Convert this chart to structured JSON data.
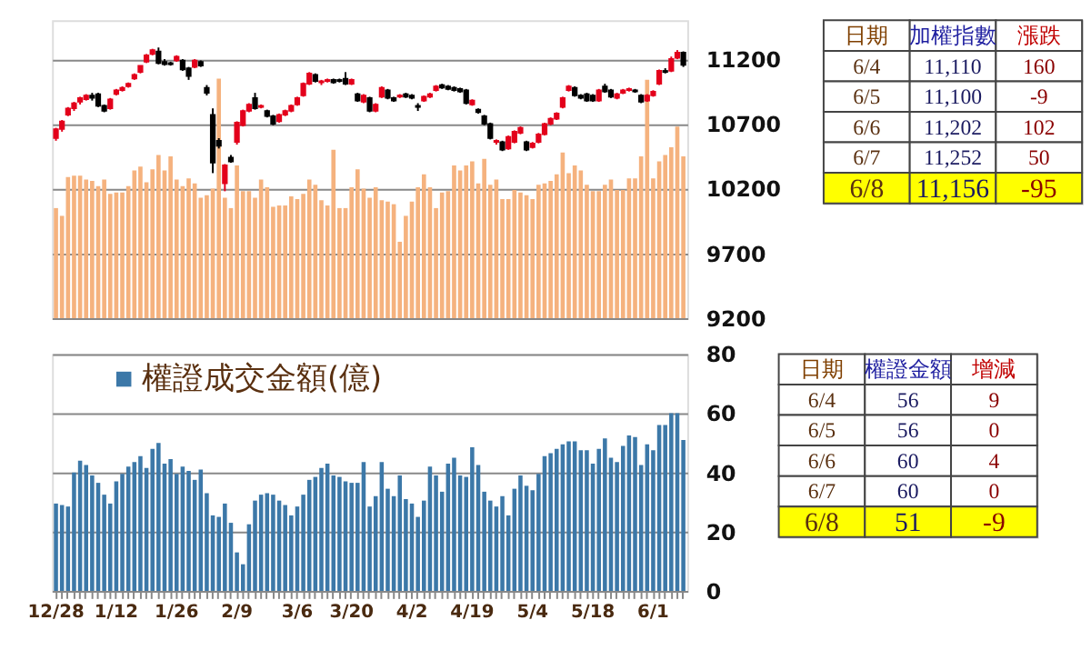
{
  "chart_data": [
    {
      "type": "candlestick",
      "categories": [
        null,
        null,
        null,
        null,
        null,
        null,
        null,
        null,
        null,
        null,
        null,
        null,
        null,
        null,
        null,
        null,
        null,
        null,
        null,
        null,
        null,
        null,
        null,
        null,
        null,
        null,
        null,
        null,
        null,
        null,
        null,
        null,
        null,
        null,
        null,
        null,
        null,
        null,
        null,
        null,
        null,
        null,
        null,
        null,
        null,
        null,
        null,
        null,
        null,
        null,
        null,
        null,
        null,
        null,
        null,
        null,
        null,
        null,
        null,
        null,
        null,
        null,
        null,
        null,
        null,
        null,
        null,
        null,
        null,
        null,
        null,
        null,
        null,
        null,
        null,
        null,
        null,
        null,
        null,
        null,
        null,
        null,
        null,
        null,
        null,
        null,
        null,
        null,
        null,
        null,
        null,
        null,
        null,
        null,
        null,
        null,
        null,
        null,
        null,
        null,
        null,
        null,
        null,
        null,
        null
      ],
      "ohlc": [
        [
          10590,
          10670,
          10570,
          10660
        ],
        [
          10660,
          10730,
          10640,
          10720
        ],
        [
          10770,
          10830,
          10760,
          10820
        ],
        [
          10820,
          10870,
          10800,
          10860
        ],
        [
          10870,
          10910,
          10850,
          10900
        ],
        [
          10890,
          10930,
          10880,
          10920
        ],
        [
          10920,
          10940,
          10880,
          10900
        ],
        [
          10930,
          10940,
          10830,
          10840
        ],
        [
          10840,
          10850,
          10790,
          10800
        ],
        [
          10820,
          10900,
          10810,
          10890
        ],
        [
          10930,
          10970,
          10920,
          10960
        ],
        [
          10960,
          10990,
          10950,
          10980
        ],
        [
          10990,
          11020,
          10980,
          11010
        ],
        [
          11050,
          11090,
          11040,
          11080
        ],
        [
          11100,
          11150,
          11090,
          11150
        ],
        [
          11180,
          11240,
          11170,
          11230
        ],
        [
          11240,
          11280,
          11230,
          11270
        ],
        [
          11260,
          11290,
          11160,
          11170
        ],
        [
          11180,
          11200,
          11150,
          11160
        ],
        [
          11170,
          11180,
          11150,
          11160
        ],
        [
          11190,
          11230,
          11180,
          11220
        ],
        [
          11190,
          11200,
          11110,
          11120
        ],
        [
          11130,
          11140,
          11040,
          11070
        ],
        [
          11140,
          11200,
          11130,
          11190
        ],
        [
          11180,
          11190,
          11140,
          11150
        ],
        [
          10980,
          11000,
          10920,
          10940
        ],
        [
          10770,
          10820,
          10320,
          10400
        ],
        [
          10570,
          10590,
          10510,
          10530
        ],
        [
          10240,
          10390,
          10180,
          10380
        ],
        [
          10440,
          10460,
          10400,
          10410
        ],
        [
          10560,
          10720,
          10540,
          10710
        ],
        [
          10690,
          10810,
          10680,
          10800
        ],
        [
          10800,
          10860,
          10790,
          10850
        ],
        [
          10900,
          10940,
          10810,
          10820
        ],
        [
          10830,
          10850,
          10820,
          10840
        ],
        [
          10800,
          10810,
          10750,
          10760
        ],
        [
          10760,
          10770,
          10690,
          10700
        ],
        [
          10720,
          10780,
          10710,
          10770
        ],
        [
          10770,
          10810,
          10760,
          10800
        ],
        [
          10800,
          10850,
          10790,
          10840
        ],
        [
          10850,
          10910,
          10840,
          10900
        ],
        [
          10920,
          11020,
          10910,
          11010
        ],
        [
          11010,
          11100,
          11000,
          11090
        ],
        [
          11080,
          11090,
          11020,
          11030
        ],
        [
          11020,
          11040,
          11000,
          11030
        ],
        [
          11030,
          11050,
          11020,
          11040
        ],
        [
          11040,
          11050,
          11010,
          11020
        ],
        [
          11040,
          11050,
          11020,
          11030
        ],
        [
          11050,
          11100,
          11000,
          11010
        ],
        [
          11010,
          11050,
          11000,
          11040
        ],
        [
          10930,
          10940,
          10870,
          10880
        ],
        [
          10870,
          10930,
          10860,
          10920
        ],
        [
          10900,
          10910,
          10790,
          10800
        ],
        [
          10800,
          10860,
          10790,
          10850
        ],
        [
          10910,
          10990,
          10900,
          10980
        ],
        [
          10960,
          10970,
          10890,
          10900
        ],
        [
          10900,
          10910,
          10870,
          10880
        ],
        [
          10910,
          10930,
          10900,
          10920
        ],
        [
          10930,
          10940,
          10900,
          10910
        ],
        [
          10920,
          10930,
          10890,
          10900
        ],
        [
          10840,
          10860,
          10800,
          10830
        ],
        [
          10880,
          10920,
          10870,
          10910
        ],
        [
          10910,
          10940,
          10900,
          10930
        ],
        [
          10960,
          11000,
          10950,
          10990
        ],
        [
          11000,
          11010,
          10970,
          10980
        ],
        [
          10990,
          11000,
          10960,
          10970
        ],
        [
          10980,
          10990,
          10950,
          10960
        ],
        [
          10970,
          10980,
          10940,
          10950
        ],
        [
          10960,
          10970,
          10850,
          10860
        ],
        [
          10850,
          10890,
          10840,
          10880
        ],
        [
          10810,
          10820,
          10780,
          10790
        ],
        [
          10760,
          10770,
          10690,
          10700
        ],
        [
          10700,
          10710,
          10580,
          10590
        ],
        [
          10560,
          10580,
          10540,
          10570
        ],
        [
          10560,
          10570,
          10490,
          10500
        ],
        [
          10510,
          10610,
          10500,
          10600
        ],
        [
          10560,
          10650,
          10550,
          10640
        ],
        [
          10630,
          10680,
          10620,
          10670
        ],
        [
          10560,
          10570,
          10490,
          10500
        ],
        [
          10520,
          10560,
          10510,
          10550
        ],
        [
          10560,
          10630,
          10550,
          10620
        ],
        [
          10620,
          10710,
          10610,
          10700
        ],
        [
          10700,
          10750,
          10690,
          10740
        ],
        [
          10740,
          10790,
          10730,
          10780
        ],
        [
          10830,
          10910,
          10820,
          10900
        ],
        [
          10960,
          11000,
          10950,
          10990
        ],
        [
          10980,
          10990,
          10910,
          10920
        ],
        [
          10920,
          10930,
          10890,
          10900
        ],
        [
          10930,
          10940,
          10870,
          10880
        ],
        [
          10920,
          10930,
          10870,
          10880
        ],
        [
          10880,
          10970,
          10870,
          10960
        ],
        [
          10990,
          11010,
          10940,
          10950
        ],
        [
          10960,
          10970,
          10900,
          10910
        ],
        [
          10900,
          10940,
          10890,
          10930
        ],
        [
          10940,
          10970,
          10930,
          10960
        ],
        [
          10960,
          10980,
          10950,
          10970
        ],
        [
          10960,
          10970,
          10940,
          10950
        ],
        [
          10920,
          10930,
          10860,
          10870
        ],
        [
          10880,
          10930,
          10870,
          10920
        ],
        [
          10920,
          10960,
          10910,
          10950
        ],
        [
          11010,
          11120,
          11000,
          11110
        ],
        [
          11110,
          11130,
          11090,
          11100
        ],
        [
          11110,
          11220,
          11100,
          11202
        ],
        [
          11210,
          11270,
          11200,
          11252
        ],
        [
          11252,
          11260,
          11140,
          11156
        ]
      ],
      "colors": [
        "#e3001b",
        "#e3001b",
        "#e3001b",
        "#e3001b",
        "#e3001b",
        "#e3001b",
        "#000000",
        "#000000",
        "#000000",
        "#e3001b",
        "#e3001b",
        "#e3001b",
        "#e3001b",
        "#e3001b",
        "#e3001b",
        "#e3001b",
        "#e3001b",
        "#000000",
        "#000000",
        "#000000",
        "#e3001b",
        "#000000",
        "#000000",
        "#e3001b",
        "#000000",
        "#000000",
        "#000000",
        "#000000",
        "#e3001b",
        "#000000",
        "#e3001b",
        "#e3001b",
        "#e3001b",
        "#000000",
        "#e3001b",
        "#000000",
        "#000000",
        "#e3001b",
        "#e3001b",
        "#e3001b",
        "#e3001b",
        "#e3001b",
        "#e3001b",
        "#000000",
        "#e3001b",
        "#e3001b",
        "#000000",
        "#000000",
        "#000000",
        "#e3001b",
        "#000000",
        "#e3001b",
        "#000000",
        "#e3001b",
        "#e3001b",
        "#000000",
        "#000000",
        "#e3001b",
        "#000000",
        "#000000",
        "#000000",
        "#e3001b",
        "#e3001b",
        "#e3001b",
        "#000000",
        "#000000",
        "#000000",
        "#000000",
        "#000000",
        "#e3001b",
        "#000000",
        "#000000",
        "#000000",
        "#e3001b",
        "#000000",
        "#e3001b",
        "#e3001b",
        "#e3001b",
        "#000000",
        "#e3001b",
        "#e3001b",
        "#e3001b",
        "#e3001b",
        "#e3001b",
        "#e3001b",
        "#e3001b",
        "#000000",
        "#000000",
        "#000000",
        "#000000",
        "#e3001b",
        "#000000",
        "#000000",
        "#e3001b",
        "#e3001b",
        "#e3001b",
        "#000000",
        "#000000",
        "#e3001b",
        "#e3001b",
        "#e3001b",
        "#000000",
        "#e3001b",
        "#e3001b",
        "#000000"
      ],
      "series": [
        {
          "type": "bar",
          "color": "#f5b27e",
          "values": [
            10050,
            9990,
            10290,
            10300,
            10300,
            10270,
            10260,
            10220,
            10270,
            10160,
            10170,
            10170,
            10220,
            10340,
            10370,
            10250,
            10350,
            10460,
            10340,
            10450,
            10270,
            10220,
            10280,
            10240,
            10130,
            10150,
            10200,
            11050,
            10130,
            10050,
            10380,
            10180,
            10180,
            10130,
            10270,
            10210,
            10060,
            10070,
            10070,
            10140,
            10120,
            10160,
            10270,
            10230,
            10110,
            10070,
            10500,
            10050,
            10050,
            10210,
            10350,
            10200,
            10130,
            10210,
            10110,
            10100,
            10080,
            9790,
            9990,
            10100,
            10210,
            10310,
            10210,
            10050,
            10170,
            10180,
            10380,
            10340,
            10380,
            10410,
            10240,
            10430,
            10230,
            10270,
            10120,
            10120,
            10190,
            10170,
            10150,
            10120,
            10230,
            10240,
            10260,
            10310,
            10480,
            10320,
            10380,
            10340,
            10230,
            10180,
            10180,
            10230,
            10270,
            10190,
            10190,
            10280,
            10280,
            10450,
            11040,
            10280,
            10410,
            10460,
            10520,
            10680,
            10450
          ]
        }
      ],
      "ylim": [
        9200,
        11500
      ],
      "yticks": [
        9200,
        9700,
        10200,
        10700,
        11200
      ],
      "grid": "y",
      "tick_labels": "y"
    },
    {
      "type": "other",
      "categories": [
        "日期",
        "加權指數",
        "漲跌"
      ],
      "annotations": [
        "6/4",
        "11,110",
        "160",
        "6/5",
        "11,100",
        "-9",
        "6/6",
        "11,202",
        "102",
        "6/7",
        "11,252",
        "50",
        "6/8",
        "11,156",
        "-95"
      ],
      "colors": [
        "#ffffff",
        "#ffffff",
        "#ffffff",
        "#ffffff",
        "#ffffff",
        "#ffffff",
        "#ffffff",
        "#ffffff",
        "#ffffff",
        "#ffffff",
        "#ffffff",
        "#ffffff",
        "#ffffff",
        "#ffffff",
        "#ffffff",
        "#ffff00",
        "#ffff00",
        "#ffff00"
      ]
    },
    {
      "type": "bar",
      "categories": [
        "12/28",
        null,
        null,
        null,
        null,
        null,
        null,
        null,
        null,
        null,
        "1/12",
        null,
        null,
        null,
        null,
        null,
        null,
        null,
        null,
        null,
        "1/26",
        null,
        null,
        null,
        null,
        null,
        null,
        null,
        null,
        null,
        "2/9",
        null,
        null,
        null,
        null,
        null,
        null,
        null,
        null,
        null,
        "3/6",
        null,
        null,
        null,
        null,
        null,
        null,
        null,
        null,
        "3/20",
        null,
        null,
        null,
        null,
        null,
        null,
        null,
        null,
        null,
        "4/2",
        null,
        null,
        null,
        null,
        null,
        null,
        null,
        null,
        null,
        "4/19",
        null,
        null,
        null,
        null,
        null,
        null,
        null,
        null,
        null,
        "5/4",
        null,
        null,
        null,
        null,
        null,
        null,
        null,
        null,
        null,
        "5/18",
        null,
        null,
        null,
        null,
        null,
        null,
        null,
        null,
        null,
        "6/1",
        null,
        null,
        null,
        null,
        null
      ],
      "series": [
        {
          "name": "權證成交金額(億)",
          "color": "#3c78a8",
          "values": [
            29.5,
            29,
            28.5,
            40,
            44,
            42.5,
            39,
            36.5,
            32.5,
            29.5,
            37,
            39.5,
            42,
            43.5,
            45.5,
            41.5,
            48,
            50,
            43,
            44.5,
            39.5,
            42,
            40.5,
            37.5,
            41,
            33,
            25.5,
            25,
            29.5,
            23,
            13,
            9,
            22.5,
            30.5,
            32.5,
            33,
            32.5,
            30.5,
            29,
            25.5,
            28.5,
            32.5,
            37.5,
            38.5,
            41.5,
            43,
            39,
            38.5,
            37,
            36.5,
            36.5,
            43.5,
            28.5,
            32,
            43.5,
            34.5,
            32,
            39,
            31,
            29.5,
            25,
            30.5,
            42,
            39,
            33.5,
            43,
            45,
            39,
            38.5,
            48.5,
            42.5,
            33.5,
            30.5,
            28.5,
            32,
            25.5,
            34.5,
            39,
            35.5,
            34,
            39.5,
            45.5,
            46.5,
            48,
            49.5,
            50.5,
            50.5,
            47.5,
            47.5,
            43,
            48,
            51.5,
            45,
            43.5,
            49,
            52.5,
            52,
            42.5,
            49.5,
            47.5,
            56,
            56,
            60,
            60,
            51
          ]
        }
      ],
      "ylim": [
        0,
        80
      ],
      "yticks": [
        0,
        20,
        40,
        60,
        80
      ],
      "grid": "y",
      "legend": "top left"
    },
    {
      "type": "other",
      "categories": [
        "日期",
        "權證金額",
        "增減"
      ],
      "annotations": [
        "6/4",
        "56",
        "9",
        "6/5",
        "56",
        "0",
        "6/6",
        "60",
        "4",
        "6/7",
        "60",
        "0",
        "6/8",
        "51",
        "-9"
      ],
      "colors": [
        "#ffffff",
        "#ffffff",
        "#ffffff",
        "#ffffff",
        "#ffffff",
        "#ffffff",
        "#ffffff",
        "#ffffff",
        "#ffffff",
        "#ffffff",
        "#ffffff",
        "#ffffff",
        "#ffffff",
        "#ffffff",
        "#ffffff",
        "#ffff00",
        "#ffff00",
        "#ffff00"
      ]
    }
  ]
}
